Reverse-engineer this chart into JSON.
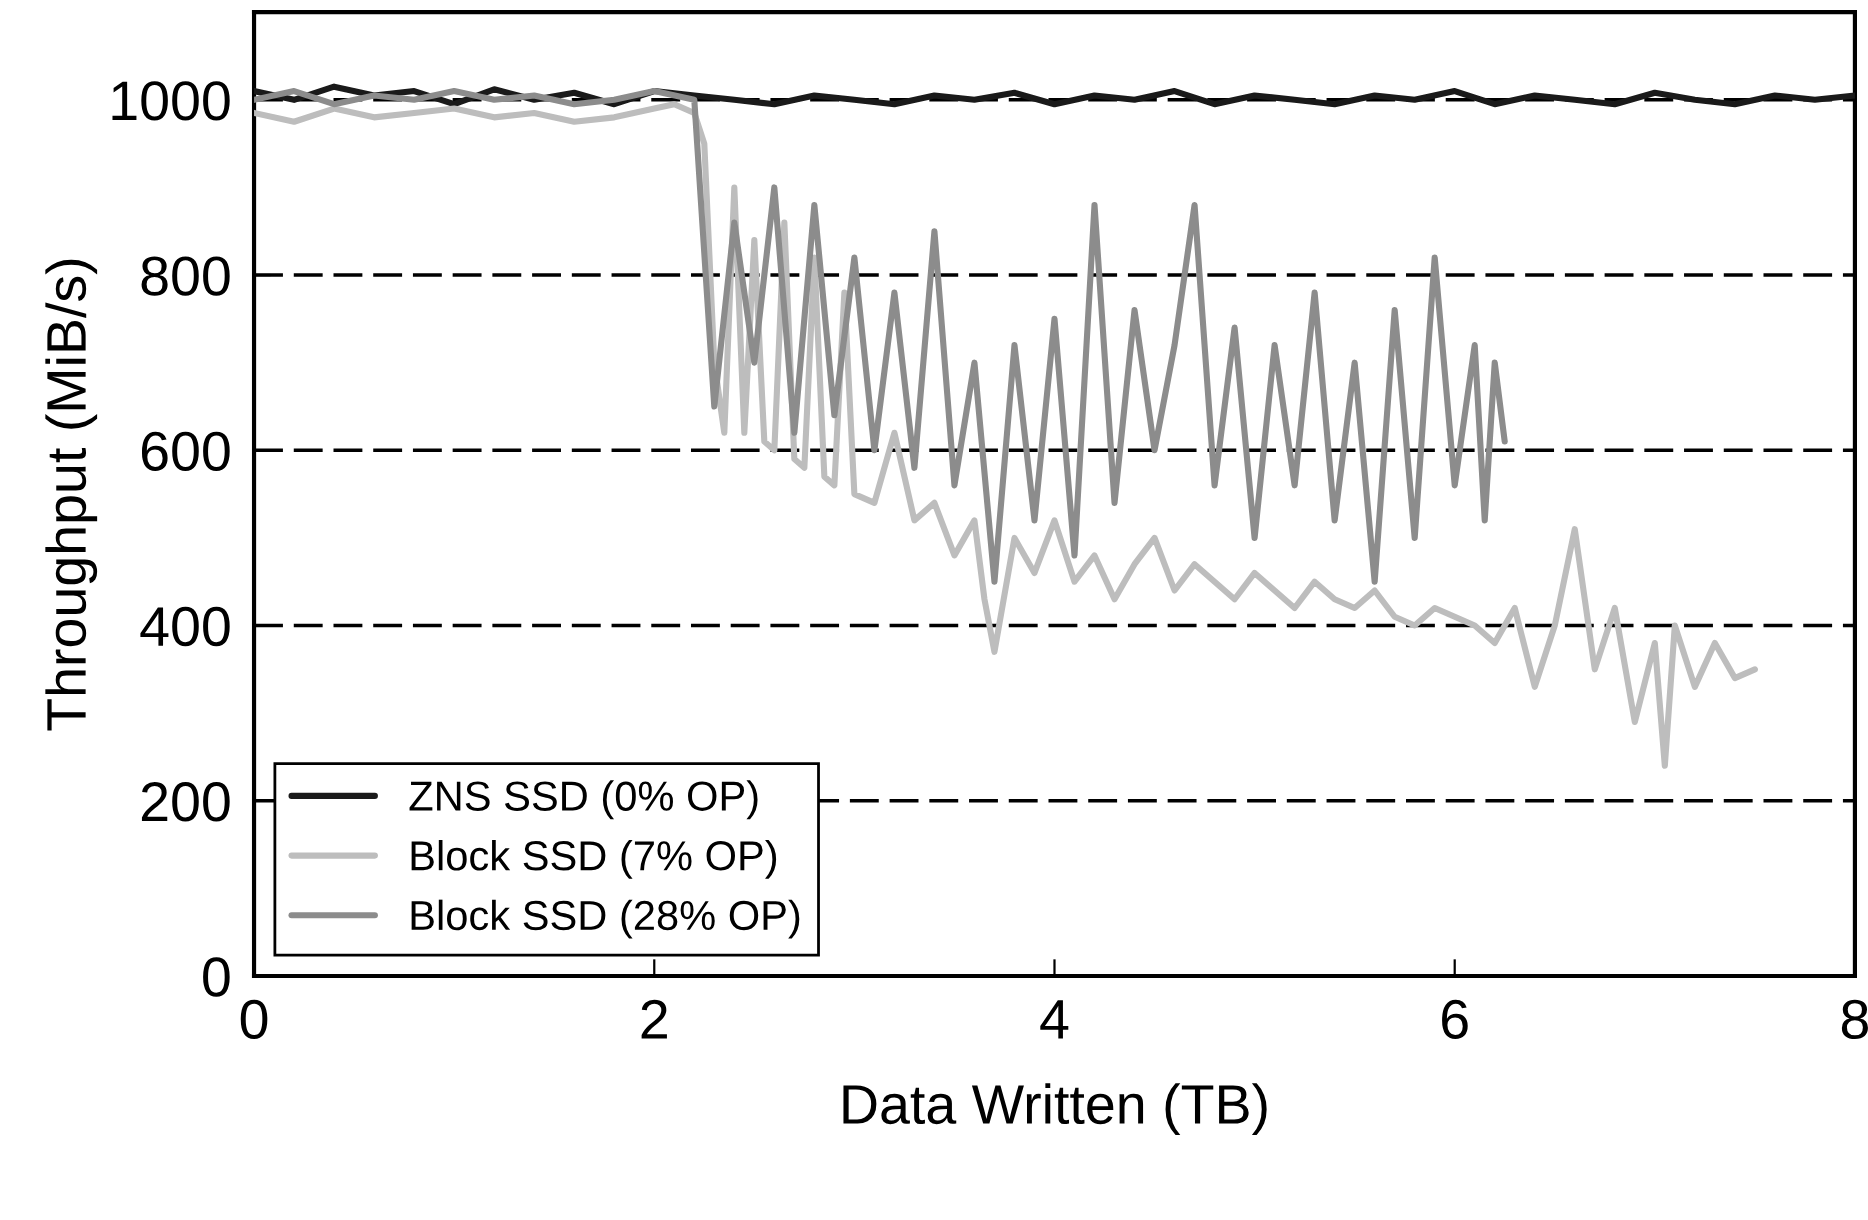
{
  "chart_data": {
    "type": "line",
    "xlabel": "Data Written (TB)",
    "ylabel": "Throughput (MiB/s)",
    "xlim": [
      0,
      8
    ],
    "xticks": [
      0,
      2,
      4,
      6,
      8
    ],
    "ylim": [
      0,
      1100
    ],
    "yticks": [
      0,
      200,
      400,
      600,
      800,
      1000
    ],
    "grid": "y",
    "legend": "bottom left",
    "marker": "none",
    "line_style": "solid",
    "series": [
      {
        "name": "ZNS SSD (0% OP)",
        "color": "#1a1a1a",
        "x": [
          0,
          0.2,
          0.4,
          0.6,
          0.8,
          1.0,
          1.2,
          1.4,
          1.6,
          1.8,
          2.0,
          2.2,
          2.4,
          2.6,
          2.8,
          3.0,
          3.2,
          3.4,
          3.6,
          3.8,
          4.0,
          4.2,
          4.4,
          4.6,
          4.8,
          5.0,
          5.2,
          5.4,
          5.6,
          5.8,
          6.0,
          6.2,
          6.4,
          6.6,
          6.8,
          7.0,
          7.2,
          7.4,
          7.6,
          7.8,
          8.0
        ],
        "values": [
          1010,
          1000,
          1015,
          1005,
          1010,
          995,
          1012,
          1000,
          1008,
          995,
          1010,
          1005,
          1000,
          995,
          1005,
          1000,
          995,
          1005,
          1000,
          1008,
          995,
          1005,
          1000,
          1010,
          995,
          1005,
          1000,
          995,
          1005,
          1000,
          1010,
          995,
          1005,
          1000,
          995,
          1008,
          1000,
          995,
          1005,
          1000,
          1005
        ]
      },
      {
        "name": "Block SSD (7% OP)",
        "color": "#bdbdbd",
        "x": [
          0,
          0.2,
          0.4,
          0.6,
          0.8,
          1.0,
          1.2,
          1.4,
          1.6,
          1.8,
          2.0,
          2.1,
          2.2,
          2.25,
          2.3,
          2.35,
          2.4,
          2.45,
          2.5,
          2.55,
          2.6,
          2.65,
          2.7,
          2.75,
          2.8,
          2.85,
          2.9,
          2.95,
          3.0,
          3.1,
          3.2,
          3.3,
          3.4,
          3.5,
          3.6,
          3.65,
          3.7,
          3.8,
          3.9,
          4.0,
          4.1,
          4.2,
          4.3,
          4.4,
          4.5,
          4.6,
          4.7,
          4.8,
          4.9,
          5.0,
          5.1,
          5.2,
          5.3,
          5.4,
          5.5,
          5.6,
          5.7,
          5.8,
          5.9,
          6.0,
          6.1,
          6.2,
          6.3,
          6.4,
          6.5,
          6.6,
          6.7,
          6.8,
          6.9,
          7.0,
          7.05,
          7.1,
          7.2,
          7.3,
          7.4,
          7.5
        ],
        "values": [
          985,
          975,
          990,
          980,
          985,
          990,
          980,
          985,
          975,
          980,
          990,
          995,
          985,
          950,
          700,
          620,
          900,
          620,
          840,
          610,
          600,
          860,
          590,
          580,
          820,
          570,
          560,
          780,
          550,
          540,
          620,
          520,
          540,
          480,
          520,
          430,
          370,
          500,
          460,
          520,
          450,
          480,
          430,
          470,
          500,
          440,
          470,
          450,
          430,
          460,
          440,
          420,
          450,
          430,
          420,
          440,
          410,
          400,
          420,
          410,
          400,
          380,
          420,
          330,
          400,
          510,
          350,
          420,
          290,
          380,
          240,
          400,
          330,
          380,
          340,
          350
        ]
      },
      {
        "name": "Block SSD (28% OP)",
        "color": "#8c8c8c",
        "x": [
          0,
          0.2,
          0.4,
          0.6,
          0.8,
          1.0,
          1.2,
          1.4,
          1.6,
          1.8,
          2.0,
          2.2,
          2.3,
          2.4,
          2.5,
          2.6,
          2.7,
          2.8,
          2.9,
          3.0,
          3.1,
          3.2,
          3.3,
          3.4,
          3.5,
          3.6,
          3.7,
          3.8,
          3.9,
          4.0,
          4.1,
          4.2,
          4.3,
          4.4,
          4.5,
          4.6,
          4.7,
          4.8,
          4.9,
          5.0,
          5.1,
          5.2,
          5.3,
          5.4,
          5.5,
          5.6,
          5.7,
          5.8,
          5.9,
          6.0,
          6.1,
          6.15,
          6.2,
          6.25
        ],
        "values": [
          1000,
          1010,
          995,
          1005,
          1000,
          1010,
          1000,
          1005,
          995,
          1000,
          1010,
          1000,
          650,
          860,
          700,
          900,
          620,
          880,
          640,
          820,
          600,
          780,
          580,
          850,
          560,
          700,
          450,
          720,
          520,
          750,
          480,
          880,
          540,
          760,
          600,
          720,
          880,
          560,
          740,
          500,
          720,
          560,
          780,
          520,
          700,
          450,
          760,
          500,
          820,
          560,
          720,
          520,
          700,
          610
        ]
      }
    ]
  }
}
